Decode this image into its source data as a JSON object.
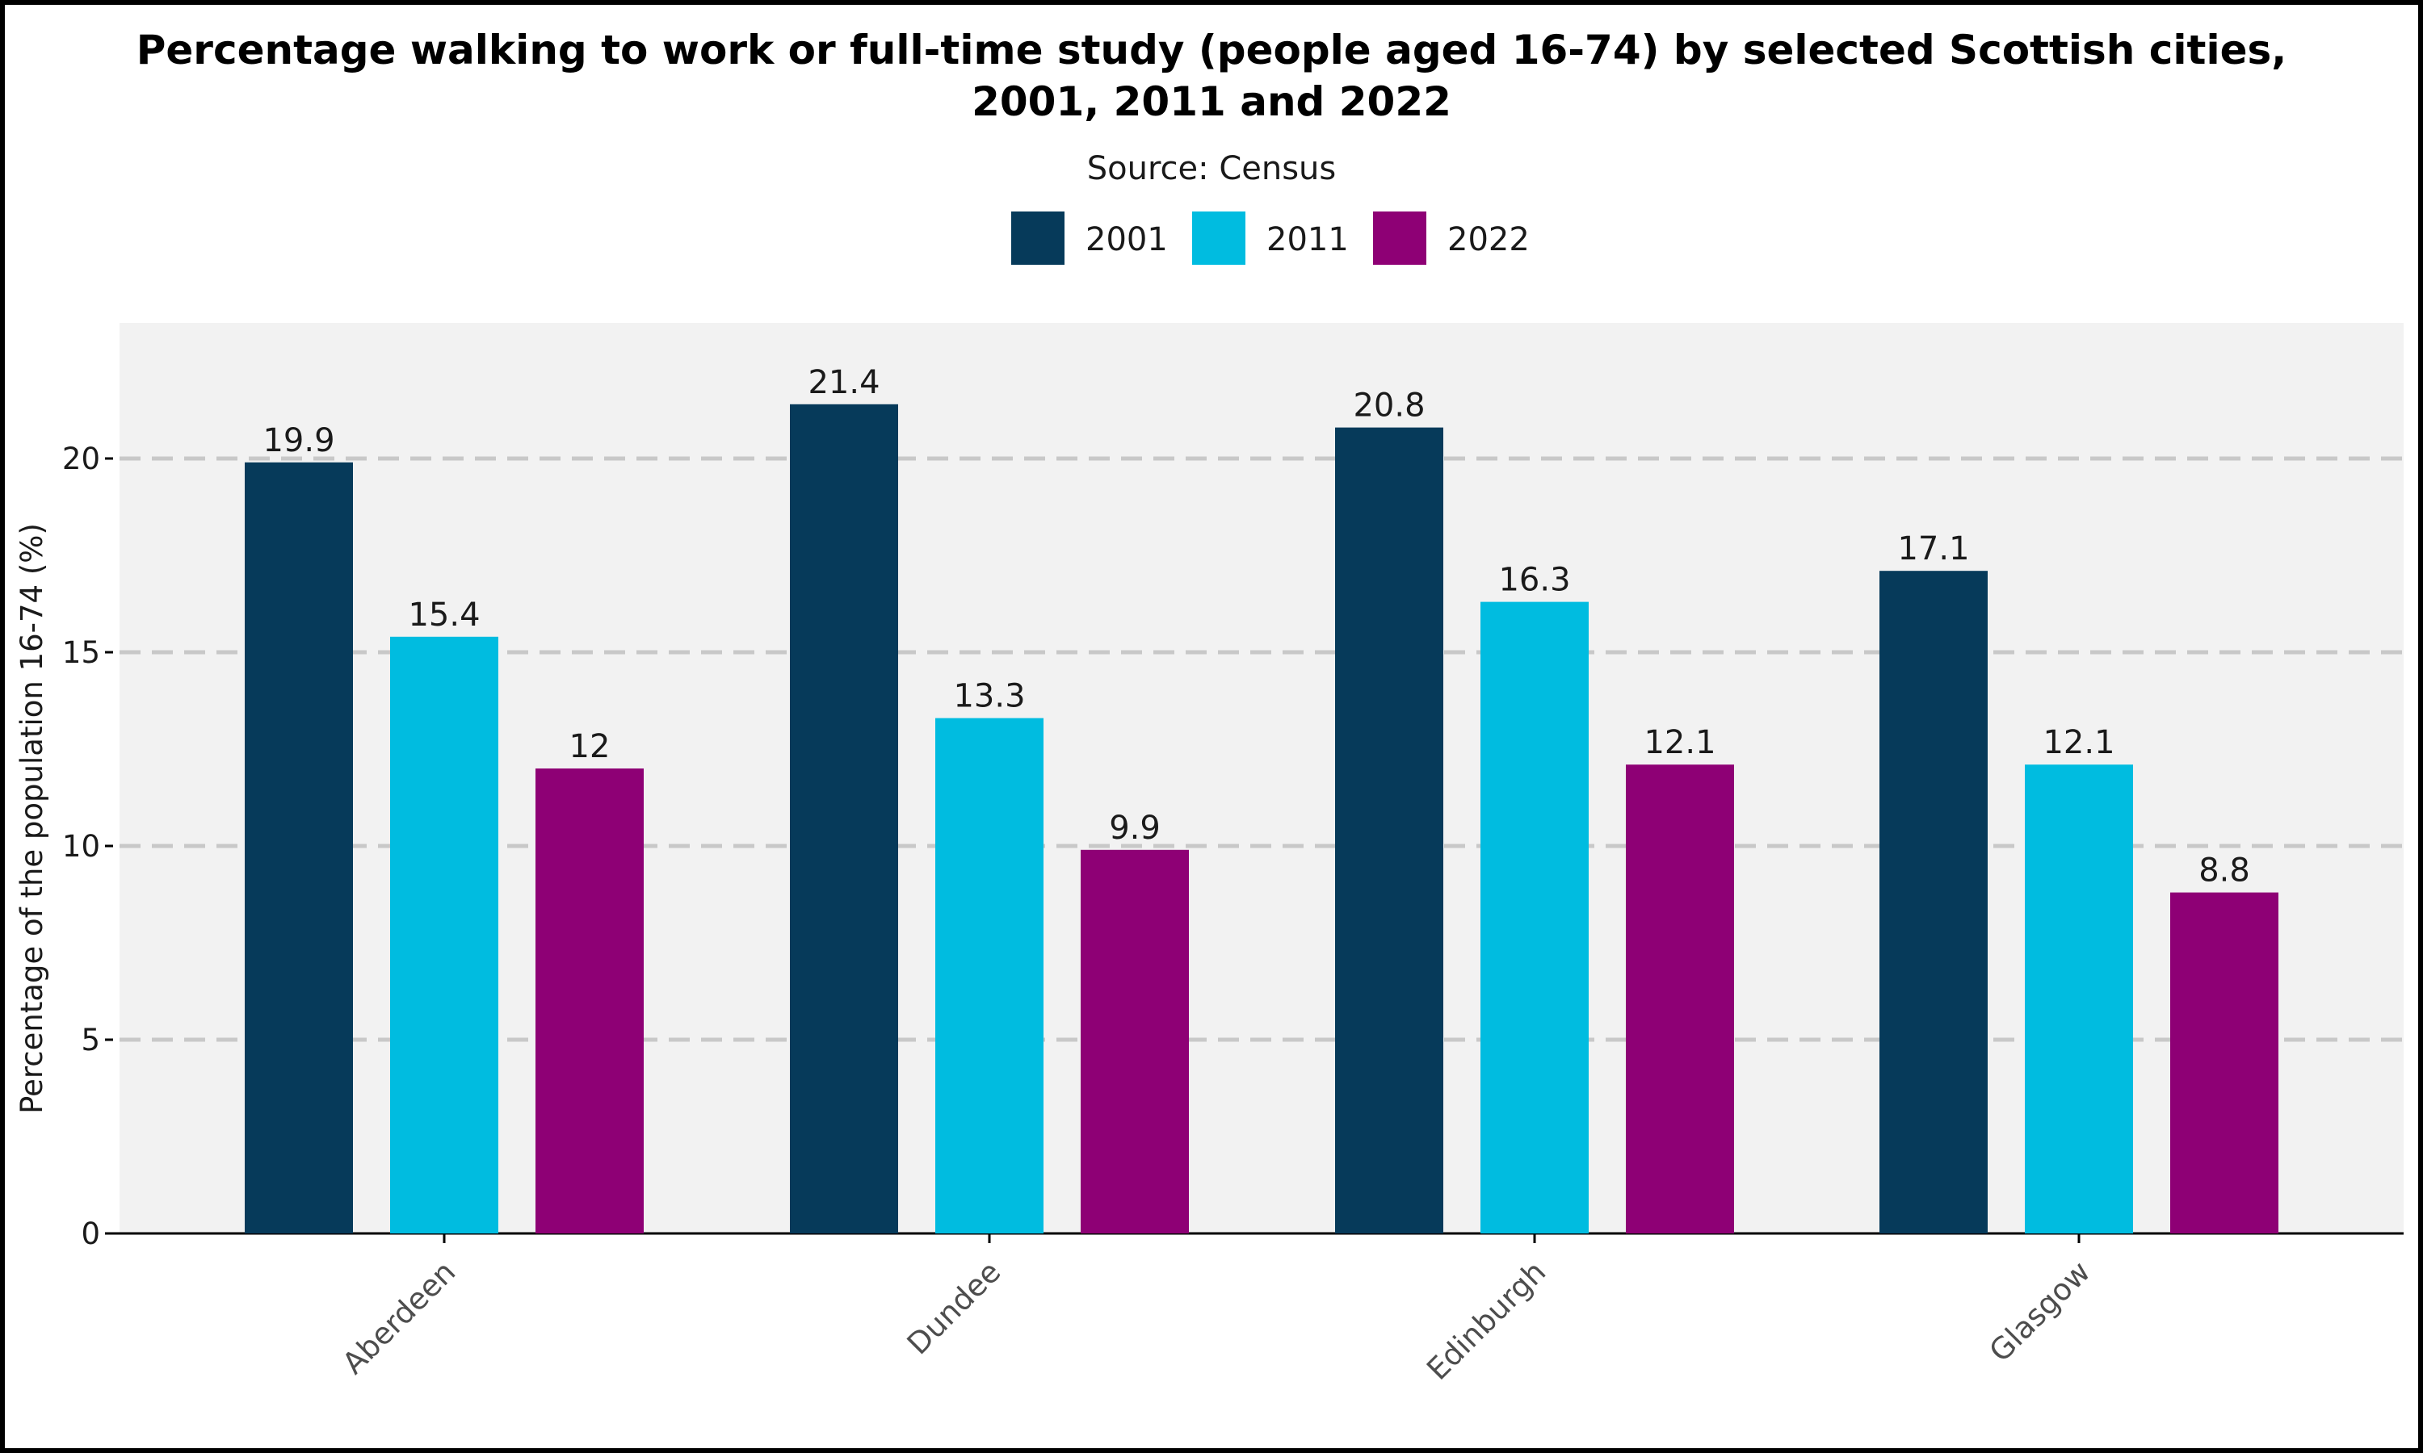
{
  "chart_data": {
    "type": "bar",
    "title_line1": "Percentage walking to work or full-time study (people aged 16-74) by selected Scottish cities,",
    "title_line2": "2001, 2011 and 2022",
    "subtitle": "Source: Census",
    "xlabel": "",
    "ylabel": "Percentage of the population 16-74 (%)",
    "ylim": [
      0,
      23.5
    ],
    "yticks": [
      "0",
      "5",
      "10",
      "15",
      "20"
    ],
    "categories": [
      "Aberdeen",
      "Dundee",
      "Edinburgh",
      "Glasgow"
    ],
    "series": [
      {
        "name": "2001",
        "color": "#063a5a",
        "values": [
          19.9,
          21.4,
          20.8,
          17.1
        ],
        "labels": [
          "19.9",
          "21.4",
          "20.8",
          "17.1"
        ]
      },
      {
        "name": "2011",
        "color": "#00bce0",
        "values": [
          15.4,
          13.3,
          16.3,
          12.1
        ],
        "labels": [
          "15.4",
          "13.3",
          "16.3",
          "12.1"
        ]
      },
      {
        "name": "2022",
        "color": "#8e0075",
        "values": [
          12,
          9.9,
          12.1,
          8.8
        ],
        "labels": [
          "12",
          "9.9",
          "12.1",
          "8.8"
        ]
      }
    ],
    "legend_position": "top",
    "grid": "horizontal-dashed",
    "panel_background": "#f2f2f2"
  }
}
